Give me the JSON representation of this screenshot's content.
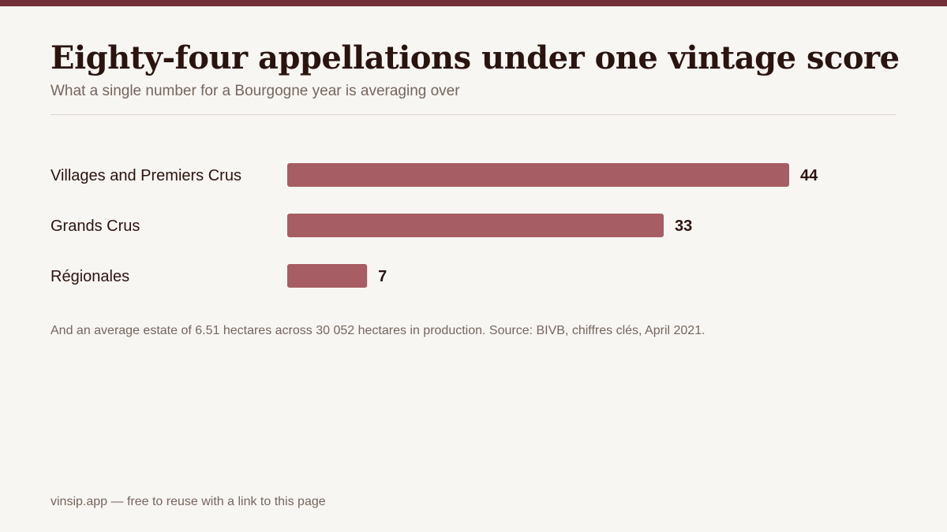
{
  "title": "Eighty-four appellations under one vintage score",
  "subtitle": "What a single number for a Bourgogne year is averaging over",
  "note": "And an average estate of 6.51 hectares across 30 052 hectares in production. Source: BIVB, chiffres clés, April 2021.",
  "footer": "vinsip.app — free to reuse with a link to this page",
  "colors": {
    "accent": "#722f37",
    "bar": "#a65d63",
    "text": "#2a1410",
    "muted": "#75665e"
  },
  "chart_data": {
    "type": "bar",
    "orientation": "horizontal",
    "categories": [
      "Villages and Premiers Crus",
      "Grands Crus",
      "Régionales"
    ],
    "values": [
      44,
      33,
      7
    ],
    "data_labels": [
      "44",
      "33",
      "7"
    ],
    "xlim": [
      0,
      44
    ],
    "grid": false,
    "legend": "none"
  }
}
